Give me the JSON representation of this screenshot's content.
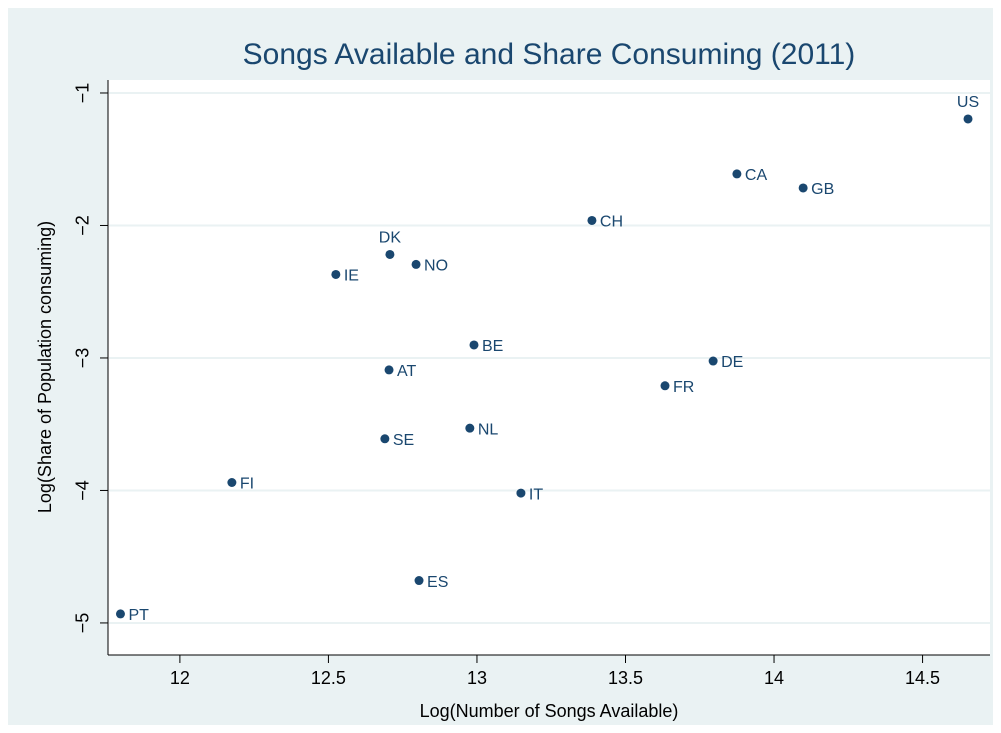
{
  "chart_data": {
    "type": "scatter",
    "title": "Songs Available and Share Consuming (2011)",
    "xlabel": "Log(Number of Songs Available)",
    "ylabel": "Log(Share of Population consuming)",
    "labels": [
      "US",
      "CA",
      "GB",
      "CH",
      "DK",
      "NO",
      "IE",
      "BE",
      "DE",
      "AT",
      "FR",
      "NL",
      "SE",
      "FI",
      "IT",
      "ES",
      "PT"
    ],
    "label_positions": [
      "above",
      "right",
      "right",
      "right",
      "above",
      "right",
      "right",
      "right",
      "right",
      "right",
      "right",
      "right",
      "right",
      "right",
      "right",
      "right",
      "right"
    ],
    "x": [
      14.653,
      13.875,
      14.098,
      13.387,
      12.707,
      12.795,
      12.525,
      12.99,
      13.795,
      12.704,
      13.633,
      12.976,
      12.69,
      12.175,
      13.148,
      12.805,
      11.8
    ],
    "y": [
      -1.196,
      -1.611,
      -1.717,
      -1.962,
      -2.219,
      -2.294,
      -2.37,
      -2.902,
      -3.023,
      -3.09,
      -3.21,
      -3.53,
      -3.61,
      -3.94,
      -4.02,
      -4.68,
      -4.932
    ],
    "color": "#1a476f",
    "xlim": [
      11.758,
      14.727
    ],
    "ylim": [
      -5.242,
      -0.902
    ],
    "xticks": [
      12,
      12.5,
      13,
      13.5,
      14,
      14.5
    ],
    "yticks": [
      {
        "value": -1,
        "label": "−1"
      },
      {
        "value": -2,
        "label": "−2"
      },
      {
        "value": -3,
        "label": "−3"
      },
      {
        "value": -4,
        "label": "−4"
      },
      {
        "value": -5,
        "label": "−5"
      }
    ],
    "grid": true
  }
}
